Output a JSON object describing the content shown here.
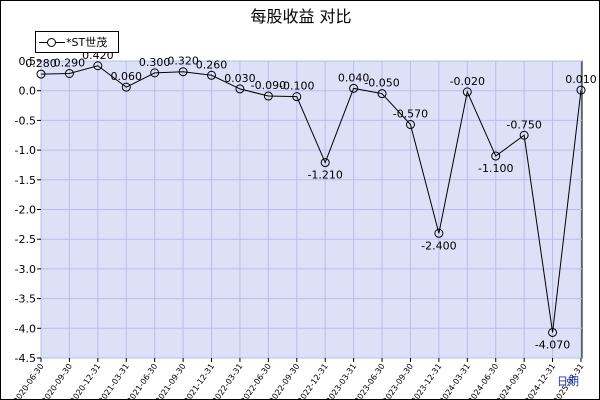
{
  "chart_data": {
    "type": "line",
    "title": "每股收益 对比",
    "xlabel": "日期",
    "ylabel": "",
    "legend_position": "top-left",
    "grid": true,
    "ylim": [
      -4.5,
      0.5
    ],
    "yticks": [
      "0.5",
      "0.0",
      "-0.5",
      "-1.0",
      "-1.5",
      "-2.0",
      "-2.5",
      "-3.0",
      "-3.5",
      "-4.0",
      "-4.5"
    ],
    "ytick_values": [
      0.5,
      0.0,
      -0.5,
      -1.0,
      -1.5,
      -2.0,
      -2.5,
      -3.0,
      -3.5,
      -4.0,
      -4.5
    ],
    "categories": [
      "2020-06-30",
      "2020-09-30",
      "2020-12-31",
      "2021-03-31",
      "2021-06-30",
      "2021-09-30",
      "2021-12-31",
      "2022-03-31",
      "2022-06-30",
      "2022-09-30",
      "2022-12-31",
      "2023-03-31",
      "2023-06-30",
      "2023-09-30",
      "2023-12-31",
      "2024-03-31",
      "2024-06-30",
      "2024-09-30",
      "2024-12-31",
      "2025-03-31"
    ],
    "series": [
      {
        "name": "*ST世茂",
        "values": [
          0.28,
          0.29,
          0.42,
          0.06,
          0.3,
          0.32,
          0.26,
          0.03,
          -0.09,
          -0.1,
          -1.21,
          0.04,
          -0.05,
          -0.57,
          -2.4,
          -0.02,
          -1.1,
          -0.75,
          -4.07,
          0.01
        ],
        "labels": [
          "0.280",
          "0.290",
          "0.420",
          "0.060",
          "0.300",
          "0.320",
          "0.260",
          "0.030",
          "-0.090",
          "-0.100",
          "-1.210",
          "0.040",
          "-0.050",
          "-0.570",
          "-2.400",
          "-0.020",
          "-1.100",
          "-0.750",
          "-4.070",
          "0.010"
        ],
        "color": "#000000"
      }
    ],
    "colors": {
      "plot_background": "#dde1f8",
      "grid": "#b8bde8",
      "line": "#000000",
      "axis_labels": "#000000",
      "xlabel_color": "#1f33b5"
    }
  }
}
